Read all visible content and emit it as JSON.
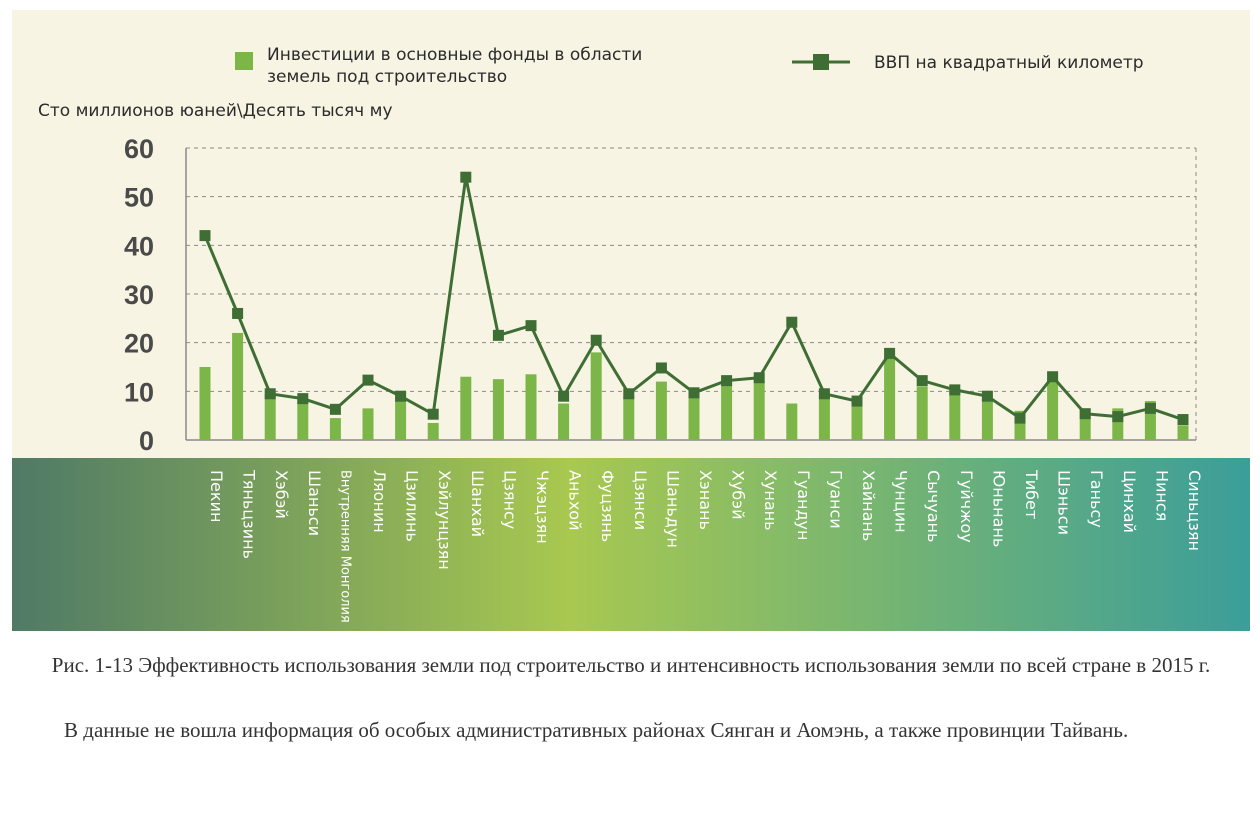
{
  "legend": {
    "bar_label_line1": "Инвестиции в основные фонды в области",
    "bar_label_line2": "земель под строительство",
    "line_label": "ВВП на квадратный километр"
  },
  "unit_label": "Сто миллионов юаней\\Десять тысяч му",
  "caption": "Рис. 1-13 Эффективность использования земли под строительство и интенсивность использования земли по всей стране в 2015 г.",
  "note": "В данные не вошла информация об особых административных районах Сянган и Аомэнь, а также провинции Тайвань.",
  "colors": {
    "panel_bg": "#f8f4e4",
    "bar": "#7cb648",
    "line": "#3f6e34",
    "band_left": "#4f7a66",
    "band_center": "#a8c850",
    "band_right": "#3b9e9a"
  },
  "chart_data": {
    "type": "bar",
    "categories": [
      "Пекин",
      "Тяньцзинь",
      "Хэбэй",
      "Шаньси",
      "Внутренняя Монголия",
      "Ляонин",
      "Цзилинь",
      "Хэйлунцзян",
      "Шанхай",
      "Цзянсу",
      "Чжэцзян",
      "Аньхой",
      "Фуцзянь",
      "Цзянси",
      "Шаньдун",
      "Хэнань",
      "Хубэй",
      "Хунань",
      "Гуандун",
      "Гуанси",
      "Хайнань",
      "Чунцин",
      "Сычуань",
      "Гуйчжоу",
      "Юньнань",
      "Тибет",
      "Шэньси",
      "Ганьсу",
      "Цинхай",
      "Нинся",
      "Синьцзян"
    ],
    "series": [
      {
        "name": "Инвестиции в основные фонды в области земель под строительство",
        "type": "bar",
        "values": [
          15,
          22,
          9.5,
          8,
          4.5,
          6.5,
          10,
          3.5,
          13,
          12.5,
          13.5,
          7.5,
          18,
          9,
          12,
          9,
          12,
          12,
          7.5,
          9,
          7,
          17,
          11,
          10,
          8.5,
          6,
          12.5,
          6.5,
          6.5,
          8,
          3
        ]
      },
      {
        "name": "ВВП на квадратный километр",
        "type": "line",
        "values": [
          42,
          26,
          9.5,
          8.5,
          6.3,
          12.3,
          9,
          5.3,
          54,
          21.5,
          23.5,
          9,
          20.5,
          9.5,
          14.8,
          9.7,
          12.2,
          12.8,
          24.2,
          9.5,
          8,
          17.8,
          12.2,
          10.3,
          9,
          4.5,
          13,
          5.4,
          4.8,
          6.5,
          4.2
        ]
      }
    ],
    "ylim": [
      0,
      60
    ],
    "yticks": [
      0,
      10,
      20,
      30,
      40,
      50,
      60
    ],
    "ylabel": "Сто миллионов юаней\\Десять тысяч му",
    "xlabel": "",
    "grid": true,
    "legend_position": "top"
  }
}
